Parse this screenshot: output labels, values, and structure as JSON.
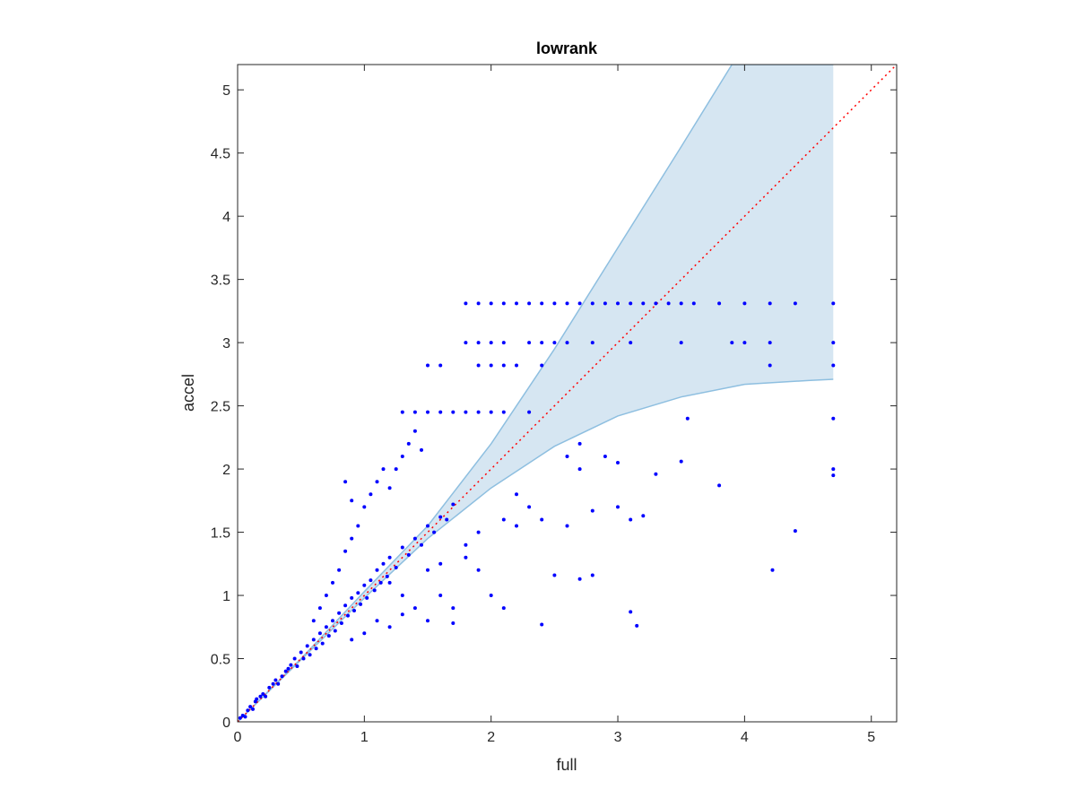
{
  "chart_data": {
    "type": "scatter",
    "title": "lowrank",
    "xlabel": "full",
    "ylabel": "accel",
    "xlim": [
      0,
      5.2
    ],
    "ylim": [
      0,
      5.2
    ],
    "xticks": [
      "0",
      "1",
      "2",
      "3",
      "4",
      "5"
    ],
    "yticks": [
      "0",
      "0.5",
      "1",
      "1.5",
      "2",
      "2.5",
      "3",
      "3.5",
      "4",
      "4.5",
      "5"
    ],
    "grid": false,
    "colors": {
      "points": "#0000ff",
      "band_fill": "#d6e6f2",
      "band_edge": "#8ebfe0",
      "identity_line": "#ff0000"
    },
    "identity_line": {
      "from": [
        0,
        0
      ],
      "to": [
        5.2,
        5.2
      ]
    },
    "band": {
      "upper": [
        [
          0,
          0
        ],
        [
          0.5,
          0.5
        ],
        [
          1,
          1.03
        ],
        [
          1.5,
          1.55
        ],
        [
          2,
          2.2
        ],
        [
          2.5,
          2.95
        ],
        [
          3,
          3.75
        ],
        [
          3.5,
          4.55
        ],
        [
          3.9,
          5.2
        ],
        [
          4.7,
          5.2
        ]
      ],
      "lower": [
        [
          4.7,
          2.71
        ],
        [
          4.5,
          2.7
        ],
        [
          4.0,
          2.67
        ],
        [
          3.5,
          2.57
        ],
        [
          3,
          2.42
        ],
        [
          2.5,
          2.18
        ],
        [
          2,
          1.85
        ],
        [
          1.5,
          1.45
        ],
        [
          1,
          0.98
        ],
        [
          0.5,
          0.49
        ],
        [
          0,
          0
        ]
      ]
    },
    "series": [
      {
        "points": [
          [
            0.02,
            0.03
          ],
          [
            0.04,
            0.05
          ],
          [
            0.06,
            0.04
          ],
          [
            0.08,
            0.09
          ],
          [
            0.1,
            0.12
          ],
          [
            0.12,
            0.1
          ],
          [
            0.14,
            0.16
          ],
          [
            0.15,
            0.18
          ],
          [
            0.18,
            0.2
          ],
          [
            0.2,
            0.22
          ],
          [
            0.22,
            0.2
          ],
          [
            0.25,
            0.27
          ],
          [
            0.28,
            0.3
          ],
          [
            0.3,
            0.33
          ],
          [
            0.32,
            0.3
          ],
          [
            0.35,
            0.36
          ],
          [
            0.38,
            0.4
          ],
          [
            0.4,
            0.42
          ],
          [
            0.42,
            0.45
          ],
          [
            0.45,
            0.5
          ],
          [
            0.47,
            0.44
          ],
          [
            0.5,
            0.55
          ],
          [
            0.52,
            0.5
          ],
          [
            0.55,
            0.6
          ],
          [
            0.57,
            0.53
          ],
          [
            0.6,
            0.65
          ],
          [
            0.62,
            0.58
          ],
          [
            0.65,
            0.7
          ],
          [
            0.67,
            0.62
          ],
          [
            0.7,
            0.75
          ],
          [
            0.72,
            0.68
          ],
          [
            0.75,
            0.8
          ],
          [
            0.77,
            0.72
          ],
          [
            0.8,
            0.86
          ],
          [
            0.82,
            0.78
          ],
          [
            0.85,
            0.92
          ],
          [
            0.87,
            0.84
          ],
          [
            0.9,
            0.98
          ],
          [
            0.92,
            0.88
          ],
          [
            0.95,
            1.02
          ],
          [
            0.97,
            0.93
          ],
          [
            1.0,
            1.08
          ],
          [
            1.02,
            0.98
          ],
          [
            1.05,
            1.12
          ],
          [
            1.08,
            1.04
          ],
          [
            1.1,
            1.2
          ],
          [
            1.13,
            1.1
          ],
          [
            1.15,
            1.25
          ],
          [
            1.18,
            1.15
          ],
          [
            1.2,
            1.3
          ],
          [
            1.25,
            1.22
          ],
          [
            1.3,
            1.38
          ],
          [
            1.35,
            1.32
          ],
          [
            1.4,
            1.45
          ],
          [
            1.45,
            1.4
          ],
          [
            1.5,
            1.55
          ],
          [
            1.55,
            1.5
          ],
          [
            1.6,
            1.62
          ],
          [
            1.65,
            1.6
          ],
          [
            1.7,
            1.72
          ],
          [
            0.6,
            0.8
          ],
          [
            0.65,
            0.9
          ],
          [
            0.7,
            1.0
          ],
          [
            0.75,
            1.1
          ],
          [
            0.8,
            1.2
          ],
          [
            0.85,
            1.35
          ],
          [
            0.9,
            1.45
          ],
          [
            0.95,
            1.55
          ],
          [
            1.0,
            1.7
          ],
          [
            1.05,
            1.8
          ],
          [
            1.1,
            1.9
          ],
          [
            1.15,
            2.0
          ],
          [
            0.85,
            1.9
          ],
          [
            0.9,
            1.75
          ],
          [
            1.2,
            1.85
          ],
          [
            1.25,
            2.0
          ],
          [
            1.3,
            2.1
          ],
          [
            1.35,
            2.2
          ],
          [
            1.4,
            2.3
          ],
          [
            1.45,
            2.15
          ],
          [
            1.3,
            2.45
          ],
          [
            1.4,
            2.45
          ],
          [
            1.5,
            2.45
          ],
          [
            1.6,
            2.45
          ],
          [
            1.7,
            2.45
          ],
          [
            1.8,
            2.45
          ],
          [
            1.9,
            2.45
          ],
          [
            2.0,
            2.45
          ],
          [
            2.1,
            2.45
          ],
          [
            2.3,
            2.45
          ],
          [
            1.5,
            2.82
          ],
          [
            1.6,
            2.82
          ],
          [
            1.9,
            2.82
          ],
          [
            2.0,
            2.82
          ],
          [
            2.1,
            2.82
          ],
          [
            2.2,
            2.82
          ],
          [
            2.4,
            2.82
          ],
          [
            4.2,
            2.82
          ],
          [
            4.7,
            2.82
          ],
          [
            1.8,
            3.0
          ],
          [
            1.9,
            3.0
          ],
          [
            2.0,
            3.0
          ],
          [
            2.1,
            3.0
          ],
          [
            2.3,
            3.0
          ],
          [
            2.4,
            3.0
          ],
          [
            2.5,
            3.0
          ],
          [
            2.6,
            3.0
          ],
          [
            2.8,
            3.0
          ],
          [
            3.1,
            3.0
          ],
          [
            3.5,
            3.0
          ],
          [
            3.9,
            3.0
          ],
          [
            4.0,
            3.0
          ],
          [
            4.2,
            3.0
          ],
          [
            4.7,
            3.0
          ],
          [
            1.8,
            3.31
          ],
          [
            1.9,
            3.31
          ],
          [
            2.0,
            3.31
          ],
          [
            2.1,
            3.31
          ],
          [
            2.2,
            3.31
          ],
          [
            2.3,
            3.31
          ],
          [
            2.4,
            3.31
          ],
          [
            2.5,
            3.31
          ],
          [
            2.6,
            3.31
          ],
          [
            2.7,
            3.31
          ],
          [
            2.8,
            3.31
          ],
          [
            2.9,
            3.31
          ],
          [
            3.0,
            3.31
          ],
          [
            3.1,
            3.31
          ],
          [
            3.2,
            3.31
          ],
          [
            3.3,
            3.31
          ],
          [
            3.4,
            3.31
          ],
          [
            3.5,
            3.31
          ],
          [
            3.6,
            3.31
          ],
          [
            3.8,
            3.31
          ],
          [
            4.0,
            3.31
          ],
          [
            4.2,
            3.31
          ],
          [
            4.4,
            3.31
          ],
          [
            4.7,
            3.31
          ],
          [
            1.2,
            1.1
          ],
          [
            1.3,
            1.0
          ],
          [
            1.4,
            0.9
          ],
          [
            1.5,
            1.2
          ],
          [
            1.6,
            1.0
          ],
          [
            1.7,
            0.9
          ],
          [
            1.8,
            1.4
          ],
          [
            1.9,
            1.2
          ],
          [
            2.0,
            1.0
          ],
          [
            2.1,
            0.9
          ],
          [
            1.1,
            0.8
          ],
          [
            1.2,
            0.75
          ],
          [
            1.0,
            0.7
          ],
          [
            0.9,
            0.65
          ],
          [
            1.3,
            0.85
          ],
          [
            1.5,
            0.8
          ],
          [
            1.7,
            0.78
          ],
          [
            2.4,
            0.77
          ],
          [
            3.15,
            0.76
          ],
          [
            3.1,
            0.87
          ],
          [
            2.5,
            1.16
          ],
          [
            2.7,
            1.13
          ],
          [
            2.8,
            1.16
          ],
          [
            2.2,
            1.55
          ],
          [
            2.4,
            1.6
          ],
          [
            2.6,
            1.55
          ],
          [
            2.8,
            1.67
          ],
          [
            3.0,
            1.7
          ],
          [
            3.1,
            1.6
          ],
          [
            3.2,
            1.63
          ],
          [
            2.7,
            2.0
          ],
          [
            2.9,
            2.1
          ],
          [
            3.0,
            2.05
          ],
          [
            3.3,
            1.96
          ],
          [
            3.5,
            2.06
          ],
          [
            3.8,
            1.87
          ],
          [
            4.4,
            1.51
          ],
          [
            4.22,
            1.2
          ],
          [
            4.7,
            2.0
          ],
          [
            4.7,
            1.95
          ],
          [
            4.7,
            2.4
          ],
          [
            3.55,
            2.4
          ],
          [
            2.6,
            2.1
          ],
          [
            2.7,
            2.2
          ],
          [
            2.2,
            1.8
          ],
          [
            2.3,
            1.7
          ],
          [
            2.1,
            1.6
          ],
          [
            1.9,
            1.5
          ],
          [
            1.8,
            1.3
          ],
          [
            1.6,
            1.25
          ]
        ]
      }
    ]
  }
}
